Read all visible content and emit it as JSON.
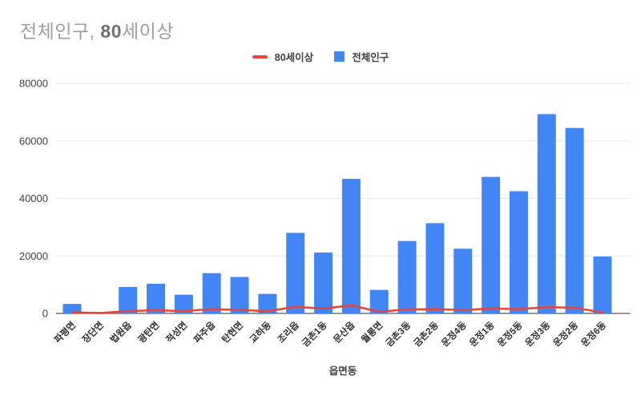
{
  "title": {
    "part1": "전체인구, ",
    "part2": "80",
    "part3": "세이상"
  },
  "legend": [
    {
      "label": "80세이상",
      "type": "line",
      "color": "#EA4335"
    },
    {
      "label": "전체인구",
      "type": "bar",
      "color": "#4285F4"
    }
  ],
  "colors": {
    "bar": "#4285F4",
    "line": "#EA4335",
    "grid": "#e6e6e6",
    "baseline": "#757575",
    "title_gray": "#9aa0a6"
  },
  "chart_data": {
    "type": "bar",
    "subtype": "combo-bar-line",
    "title": "전체인구, 80세이상",
    "xlabel": "읍면동",
    "ylabel": "",
    "ylim": [
      0,
      80000
    ],
    "yticks": [
      0,
      20000,
      40000,
      60000,
      80000
    ],
    "grid": true,
    "legend_position": "top",
    "categories": [
      "파평면",
      "장단면",
      "법원읍",
      "광탄면",
      "적성면",
      "파주읍",
      "탄현면",
      "교하동",
      "조리읍",
      "금촌1동",
      "문산읍",
      "월롱면",
      "금촌3동",
      "금촌2동",
      "운정4동",
      "운정1동",
      "운정5동",
      "운정3동",
      "운정2동",
      "운정6동"
    ],
    "series": [
      {
        "name": "80세이상",
        "type": "line",
        "color": "#EA4335",
        "values": [
          400,
          150,
          800,
          1100,
          800,
          1500,
          1200,
          800,
          2300,
          1700,
          2800,
          600,
          1400,
          1500,
          1200,
          1700,
          1500,
          2200,
          2000,
          300
        ]
      },
      {
        "name": "전체인구",
        "type": "bar",
        "color": "#4285F4",
        "values": [
          3300,
          500,
          9200,
          10300,
          6500,
          14000,
          12700,
          6800,
          28000,
          21200,
          46800,
          8200,
          25200,
          31400,
          22500,
          47500,
          42500,
          69300,
          64500,
          19800
        ]
      }
    ]
  }
}
